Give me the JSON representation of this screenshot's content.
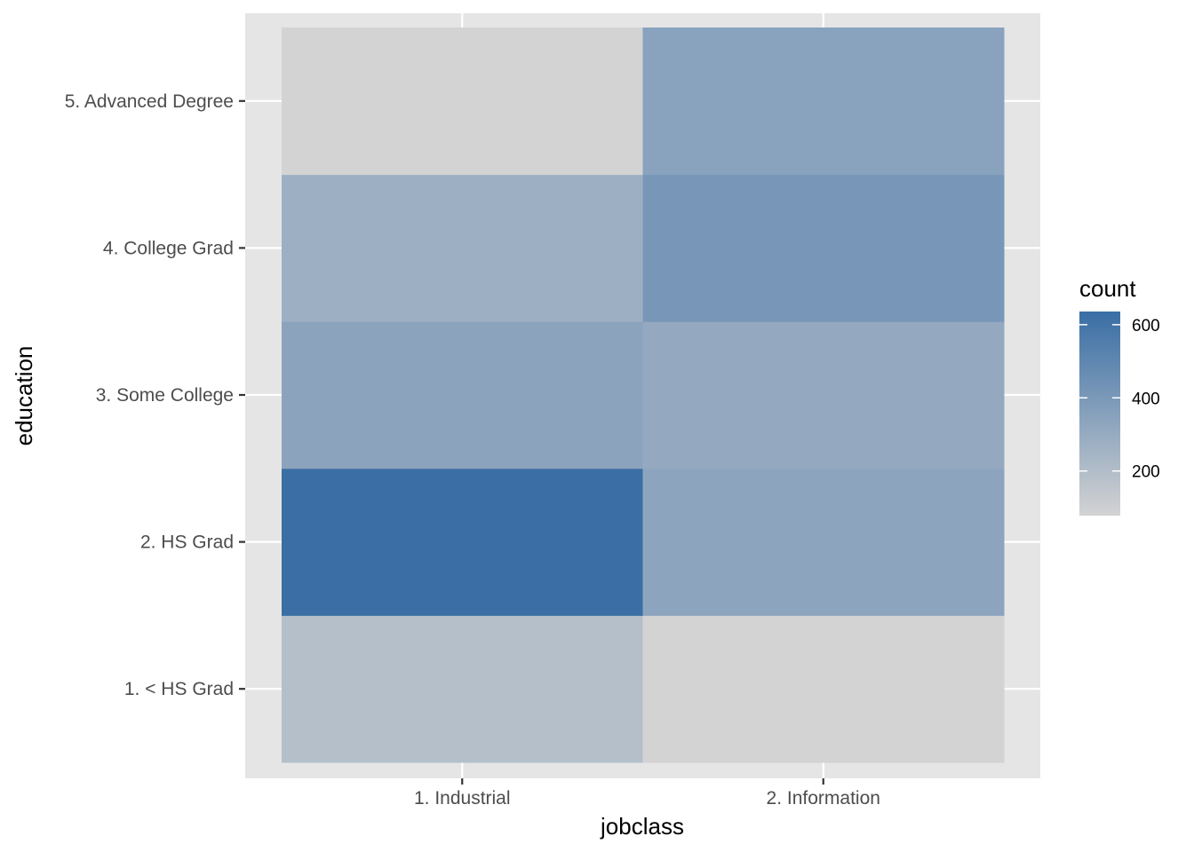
{
  "chart_data": {
    "type": "heatmap",
    "xlabel": "jobclass",
    "ylabel": "education",
    "x_categories": [
      "1. Industrial",
      "2. Information"
    ],
    "y_categories": [
      "1. < HS Grad",
      "2. HS Grad",
      "3. Some College",
      "4. College Grad",
      "5. Advanced Degree"
    ],
    "values": [
      {
        "x": "1. Industrial",
        "y": "1. < HS Grad",
        "count": 190
      },
      {
        "x": "2. Information",
        "y": "1. < HS Grad",
        "count": 78
      },
      {
        "x": "1. Industrial",
        "y": "2. HS Grad",
        "count": 636
      },
      {
        "x": "2. Information",
        "y": "2. HS Grad",
        "count": 335
      },
      {
        "x": "1. Industrial",
        "y": "3. Some College",
        "count": 342
      },
      {
        "x": "2. Information",
        "y": "3. Some College",
        "count": 308
      },
      {
        "x": "1. Industrial",
        "y": "4. College Grad",
        "count": 274
      },
      {
        "x": "2. Information",
        "y": "4. College Grad",
        "count": 411
      },
      {
        "x": "1. Industrial",
        "y": "5. Advanced Degree",
        "count": 79
      },
      {
        "x": "2. Information",
        "y": "5. Advanced Degree",
        "count": 347
      }
    ],
    "legend": {
      "title": "count",
      "breaks": [
        200,
        400,
        600
      ],
      "range": [
        78,
        636
      ],
      "low_color": "#d3d3d3",
      "high_color": "#3a6ea5",
      "placement": "right"
    },
    "grid": true,
    "panel_background": "#e5e5e5"
  }
}
